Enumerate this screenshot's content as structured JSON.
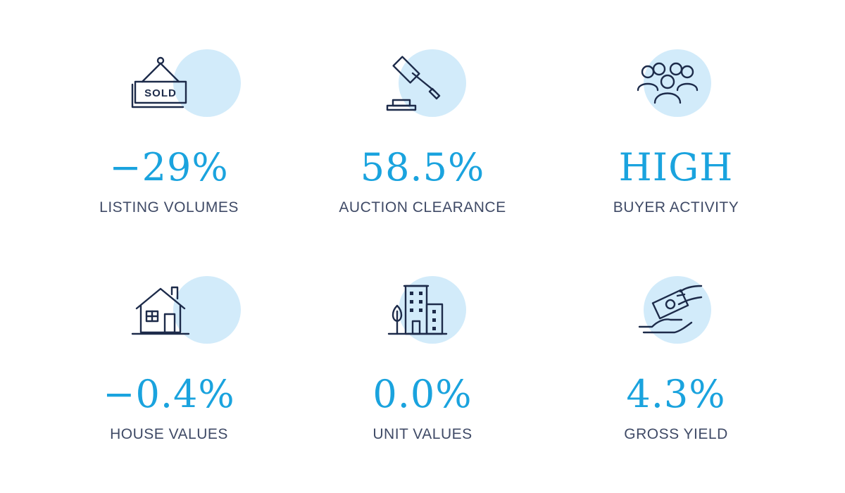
{
  "stats": [
    {
      "icon": "sold-sign-icon",
      "icon_text": "SOLD",
      "value": "−29%",
      "label": "LISTING VOLUMES"
    },
    {
      "icon": "auction-gavel-icon",
      "value": "58.5%",
      "label": "AUCTION CLEARANCE"
    },
    {
      "icon": "buyer-group-icon",
      "value": "HIGH",
      "label": "BUYER ACTIVITY"
    },
    {
      "icon": "house-icon",
      "value": "−0.4%",
      "label": "HOUSE VALUES"
    },
    {
      "icon": "apartment-building-icon",
      "value": "0.0%",
      "label": "UNIT VALUES"
    },
    {
      "icon": "money-in-hand-icon",
      "value": "4.3%",
      "label": "GROSS YIELD"
    }
  ],
  "colors": {
    "accent": "#1aa3de",
    "circle": "#d2ebfa",
    "label": "#3f4a66",
    "icon": "#1d2b4a"
  }
}
